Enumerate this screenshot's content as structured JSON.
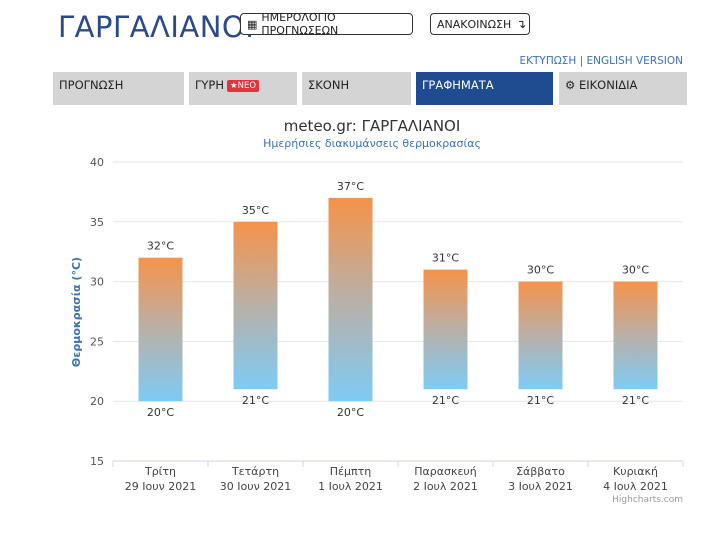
{
  "header": {
    "title": "ΓΑΡΓΑΛΙΑΝΟΙ",
    "calendar_button": "ΗΜΕΡΟΛΟΓΙΟ ΠΡΟΓΝΩΣΕΩΝ",
    "announcement_button": "ΑΝΑΚΟΙΝΩΣΗ",
    "print_link": "ΕΚΤΥΠΩΣΗ",
    "separator": "|",
    "english_link": "ENGLISH VERSION"
  },
  "tabs": [
    {
      "label": "ΠΡΟΓΝΩΣΗ",
      "active": false
    },
    {
      "label": "ΓΥΡΗ",
      "badge": "ΝΕΟ",
      "active": false
    },
    {
      "label": "ΣΚΟΝΗ",
      "active": false
    },
    {
      "label": "ΓΡΑΦΗΜΑΤΑ",
      "active": true
    },
    {
      "label": "ΕΙΚΟΝΙΔΙΑ",
      "active": false
    }
  ],
  "colors": {
    "title": "#2b4a8c",
    "active_tab": "#1f4b91",
    "tab": "#d4d4d4",
    "bar_top": "#f5934a",
    "bar_bottom": "#7ecbf5",
    "badge": "#e0343f"
  },
  "chart_data": {
    "type": "bar",
    "title": "meteo.gr: ΓΑΡΓΑΛΙΑΝΟΙ",
    "subtitle": "Ημερήσιες διακυμάνσεις θερμοκρασίας",
    "ylabel": "Θερμοκρασία (°C)",
    "ylim": [
      15,
      40
    ],
    "yticks": [
      15,
      20,
      25,
      30,
      35,
      40
    ],
    "grid": true,
    "categories": [
      {
        "day": "Τρίτη",
        "date": "29 Ιουν 2021"
      },
      {
        "day": "Τετάρτη",
        "date": "30 Ιουν 2021"
      },
      {
        "day": "Πέμπτη",
        "date": "1 Ιουλ 2021"
      },
      {
        "day": "Παρασκευή",
        "date": "2 Ιουλ 2021"
      },
      {
        "day": "Σάββατο",
        "date": "3 Ιουλ 2021"
      },
      {
        "day": "Κυριακή",
        "date": "4 Ιουλ 2021"
      }
    ],
    "min": [
      20,
      21,
      20,
      21,
      21,
      21
    ],
    "max": [
      32,
      35,
      37,
      31,
      30,
      30
    ],
    "min_labels": [
      "20°C",
      "21°C",
      "20°C",
      "21°C",
      "21°C",
      "21°C"
    ],
    "max_labels": [
      "32°C",
      "35°C",
      "37°C",
      "31°C",
      "30°C",
      "30°C"
    ],
    "credit": "Highcharts.com"
  }
}
